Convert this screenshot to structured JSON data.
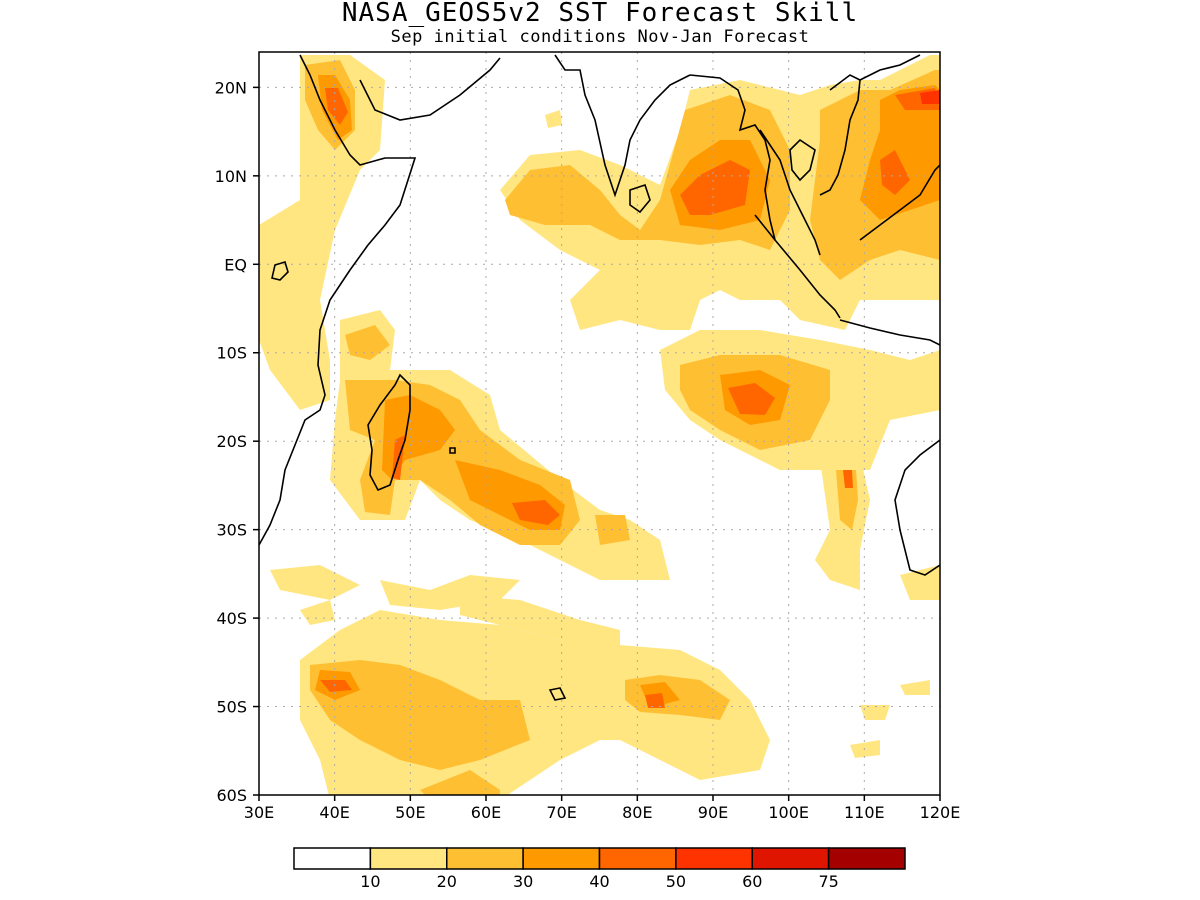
{
  "title": "NASA_GEOS5v2 SST Forecast Skill",
  "subtitle": "Sep initial conditions  Nov-Jan Forecast",
  "map": {
    "lon_range": [
      30,
      120
    ],
    "lat_range": [
      -60,
      24
    ],
    "lat_ticks": [
      {
        "value": 20,
        "label": "20N"
      },
      {
        "value": 10,
        "label": "10N"
      },
      {
        "value": 0,
        "label": "EQ"
      },
      {
        "value": -10,
        "label": "10S"
      },
      {
        "value": -20,
        "label": "20S"
      },
      {
        "value": -30,
        "label": "30S"
      },
      {
        "value": -40,
        "label": "40S"
      },
      {
        "value": -50,
        "label": "50S"
      },
      {
        "value": -60,
        "label": "60S"
      }
    ],
    "lon_ticks": [
      {
        "value": 30,
        "label": "30E"
      },
      {
        "value": 40,
        "label": "40E"
      },
      {
        "value": 50,
        "label": "50E"
      },
      {
        "value": 60,
        "label": "60E"
      },
      {
        "value": 70,
        "label": "70E"
      },
      {
        "value": 80,
        "label": "80E"
      },
      {
        "value": 90,
        "label": "90E"
      },
      {
        "value": 100,
        "label": "100E"
      },
      {
        "value": 110,
        "label": "110E"
      },
      {
        "value": 120,
        "label": "120E"
      }
    ],
    "grid": true
  },
  "colorbar": {
    "colors": [
      "#ffffff",
      "#ffe680",
      "#ffbf33",
      "#ff9900",
      "#ff6600",
      "#ff3300",
      "#e01500",
      "#a50000"
    ],
    "labels": [
      "10",
      "20",
      "30",
      "40",
      "50",
      "60",
      "75"
    ]
  }
}
